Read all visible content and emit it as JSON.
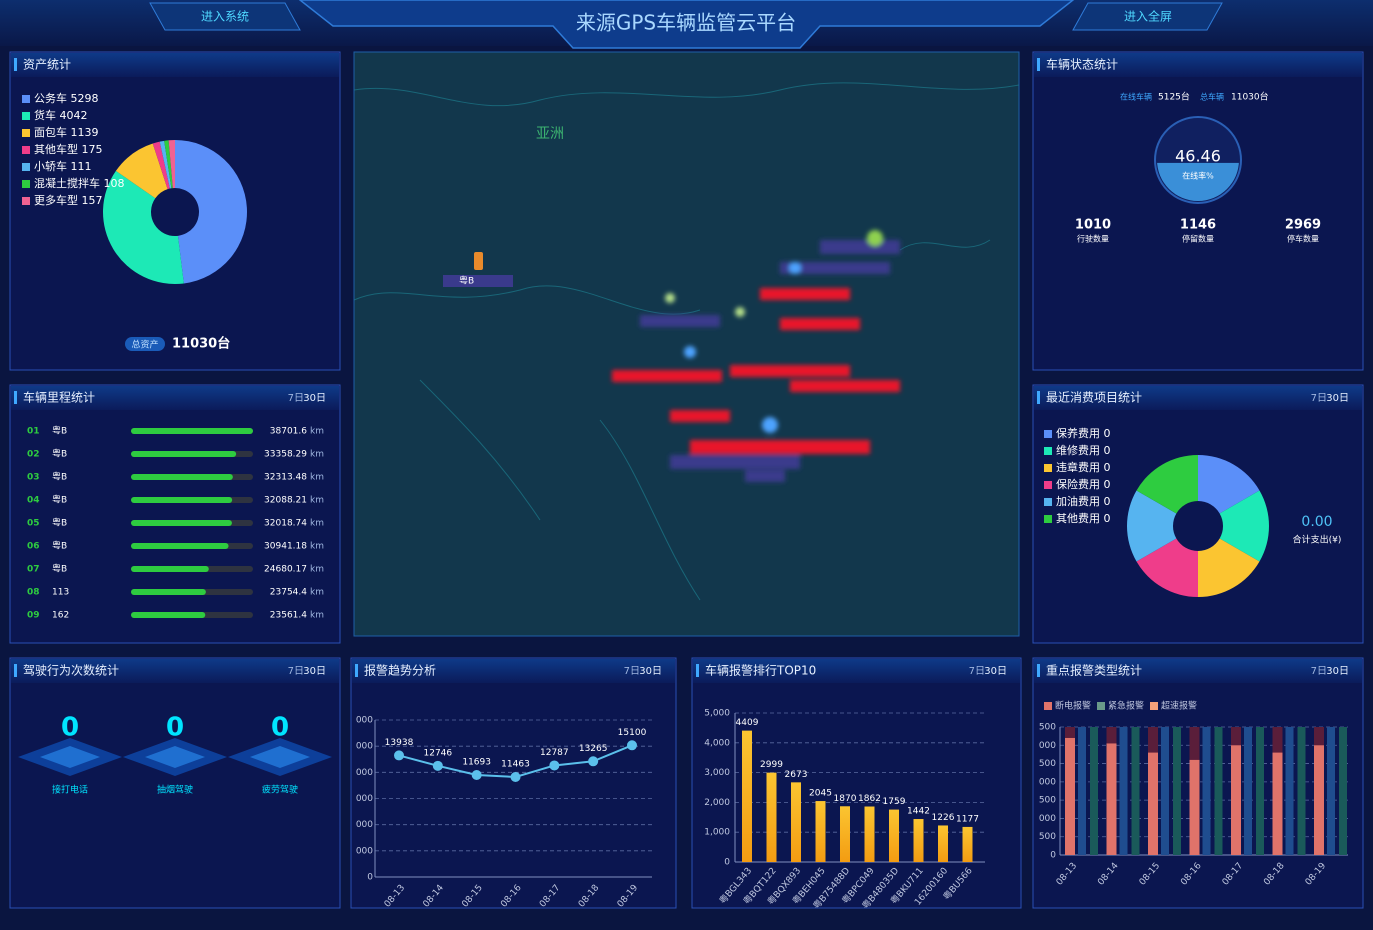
{
  "header": {
    "title": "来源GPS车辆监管云平台",
    "left_button": "进入系统",
    "right_button": "进入全屏"
  },
  "assets": {
    "title": "资产统计",
    "items": [
      {
        "name": "公务车",
        "value": 5298,
        "color": "#5b8ff9"
      },
      {
        "name": "货车",
        "value": 4042,
        "color": "#1de9b6"
      },
      {
        "name": "面包车",
        "value": 1139,
        "color": "#fbc531"
      },
      {
        "name": "其他车型",
        "value": 175,
        "color": "#ef3d8a"
      },
      {
        "name": "小轿车",
        "value": 111,
        "color": "#56b4f0"
      },
      {
        "name": "混凝土搅拌车",
        "value": 108,
        "color": "#2ecc40"
      },
      {
        "name": "更多车型",
        "value": 157,
        "color": "#f06292"
      }
    ],
    "total_label": "总资产",
    "total": "11030台"
  },
  "map": {
    "region_label": "亚洲",
    "marker_label": "粤B"
  },
  "vehicle_status": {
    "title": "车辆状态统计",
    "online_label": "在线车辆",
    "online": "5125台",
    "total_label": "总车辆",
    "total": "11030台",
    "gauge_value": 46.46,
    "gauge_label": "在线率%",
    "stats": [
      {
        "value": 1010,
        "label": "行驶数量"
      },
      {
        "value": 1146,
        "label": "停留数量"
      },
      {
        "value": 2969,
        "label": "停车数量"
      }
    ]
  },
  "mileage": {
    "title": "车辆里程统计",
    "tabs": [
      "7日",
      "30日"
    ],
    "unit": "km",
    "rows": [
      {
        "rank": "01",
        "plate": "粤B",
        "value": 38701.6
      },
      {
        "rank": "02",
        "plate": "粤B",
        "value": 33358.29
      },
      {
        "rank": "03",
        "plate": "粤B",
        "value": 32313.48
      },
      {
        "rank": "04",
        "plate": "粤B",
        "value": 32088.21
      },
      {
        "rank": "05",
        "plate": "粤B",
        "value": 32018.74
      },
      {
        "rank": "06",
        "plate": "粤B",
        "value": 30941.18
      },
      {
        "rank": "07",
        "plate": "粤B",
        "value": 24680.17
      },
      {
        "rank": "08",
        "plate": "113",
        "value": 23754.4
      },
      {
        "rank": "09",
        "plate": "162",
        "value": 23561.4
      }
    ]
  },
  "expenses": {
    "title": "最近消费项目统计",
    "tabs": [
      "7日",
      "30日"
    ],
    "items": [
      {
        "name": "保养费用",
        "value": 0,
        "color": "#5b8ff9"
      },
      {
        "name": "维修费用",
        "value": 0,
        "color": "#1de9b6"
      },
      {
        "name": "违章费用",
        "value": 0,
        "color": "#fbc531"
      },
      {
        "name": "保险费用",
        "value": 0,
        "color": "#ef3d8a"
      },
      {
        "name": "加油费用",
        "value": 0,
        "color": "#56b4f0"
      },
      {
        "name": "其他费用",
        "value": 0,
        "color": "#2ecc40"
      }
    ],
    "total": "0.00",
    "total_label": "合计支出(¥)"
  },
  "driving": {
    "title": "驾驶行为次数统计",
    "tabs": [
      "7日",
      "30日"
    ],
    "items": [
      {
        "value": 0,
        "label": "接打电话"
      },
      {
        "value": 0,
        "label": "抽烟驾驶"
      },
      {
        "value": 0,
        "label": "疲劳驾驶"
      }
    ]
  },
  "alarm_trend": {
    "title": "报警趋势分析",
    "tabs": [
      "7日",
      "30日"
    ],
    "type": "line",
    "color": "#5bc0eb",
    "x": [
      "08-13",
      "08-14",
      "08-15",
      "08-16",
      "08-17",
      "08-18",
      "08-19"
    ],
    "values": [
      13938,
      12746,
      11693,
      11463,
      12787,
      13265,
      15100
    ],
    "ylim": [
      0,
      18000
    ],
    "yticks": [
      0,
      {
        "value": 3000,
        "label": "000"
      },
      {
        "value": 6000,
        "label": "000"
      },
      {
        "value": 9000,
        "label": "000"
      },
      {
        "value": 12000,
        "label": "000"
      },
      {
        "value": 15000,
        "label": "000"
      },
      {
        "value": 18000,
        "label": "000"
      }
    ]
  },
  "alarm_top10": {
    "title": "车辆报警排行TOP10",
    "tabs": [
      "7日",
      "30日"
    ],
    "type": "bar",
    "categories": [
      "粤BGL343",
      "粤BQT122",
      "粤BQX893",
      "粤BEH045",
      "粤B75488D",
      "粤BPC049",
      "粤B48035D",
      "粤BKU711",
      "16200160",
      "粤BU566"
    ],
    "values": [
      4409,
      2999,
      2673,
      2045,
      1870,
      1862,
      1759,
      1442,
      1226,
      1177
    ],
    "ylim": [
      0,
      5000
    ],
    "yticks": [
      0,
      {
        "value": 1000,
        "label": "1,000"
      },
      {
        "value": 2000,
        "label": "2,000"
      },
      {
        "value": 3000,
        "label": "3,000"
      },
      {
        "value": 4000,
        "label": "4,000"
      },
      {
        "value": 5000,
        "label": "5,000"
      }
    ]
  },
  "key_alarms": {
    "title": "重点报警类型统计",
    "tabs": [
      "7日",
      "30日"
    ],
    "type": "bar",
    "categories": [
      "08-13",
      "08-14",
      "08-15",
      "08-16",
      "08-17",
      "08-18",
      "08-19"
    ],
    "series": [
      {
        "name": "断电报警",
        "color": "#e0736a",
        "values": [
          3200,
          3050,
          2800,
          2600,
          3000,
          2800,
          3000
        ]
      },
      {
        "name": "紧急报警",
        "color": "#6a9a8a",
        "values": [
          0,
          0,
          0,
          0,
          0,
          0,
          0
        ]
      },
      {
        "name": "超速报警",
        "color": "#f4a07a",
        "values": [
          0,
          0,
          0,
          0,
          0,
          0,
          0
        ]
      }
    ],
    "ylim": [
      0,
      3500
    ],
    "yticks": [
      0,
      500,
      {
        "value": 1000,
        "label": "000"
      },
      {
        "value": 1500,
        "label": "500"
      },
      {
        "value": 2000,
        "label": "000"
      },
      {
        "value": 2500,
        "label": "500"
      },
      {
        "value": 3000,
        "label": "000"
      },
      {
        "value": 3500,
        "label": "500"
      }
    ]
  }
}
